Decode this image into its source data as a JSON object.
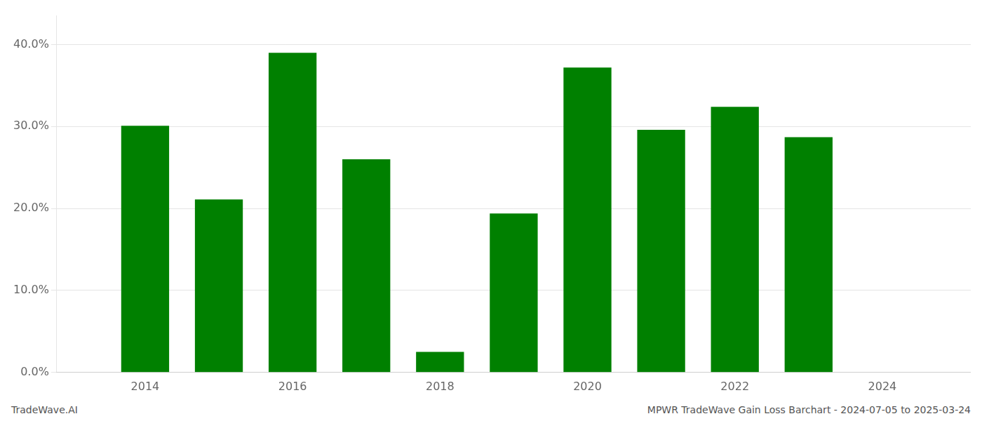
{
  "chart_data": {
    "type": "bar",
    "x": [
      2014,
      2015,
      2016,
      2017,
      2018,
      2019,
      2020,
      2021,
      2022,
      2023
    ],
    "values": [
      0.301,
      0.211,
      0.39,
      0.26,
      0.025,
      0.194,
      0.372,
      0.296,
      0.324,
      0.287
    ],
    "color": "#008000",
    "xlim": [
      2012.8,
      2025.2
    ],
    "xticks": [
      2014,
      2016,
      2018,
      2020,
      2022,
      2024
    ],
    "ylim": [
      0,
      0.435
    ],
    "yticks": [
      {
        "value": 0.0,
        "label": "0.0%"
      },
      {
        "value": 0.1,
        "label": "10.0%"
      },
      {
        "value": 0.2,
        "label": "20.0%"
      },
      {
        "value": 0.3,
        "label": "30.0%"
      },
      {
        "value": 0.4,
        "label": "40.0%"
      }
    ],
    "grid": true,
    "annotations": [
      "TradeWave.AI",
      "MPWR TradeWave Gain Loss Barchart - 2024-07-05 to 2025-03-24"
    ]
  }
}
